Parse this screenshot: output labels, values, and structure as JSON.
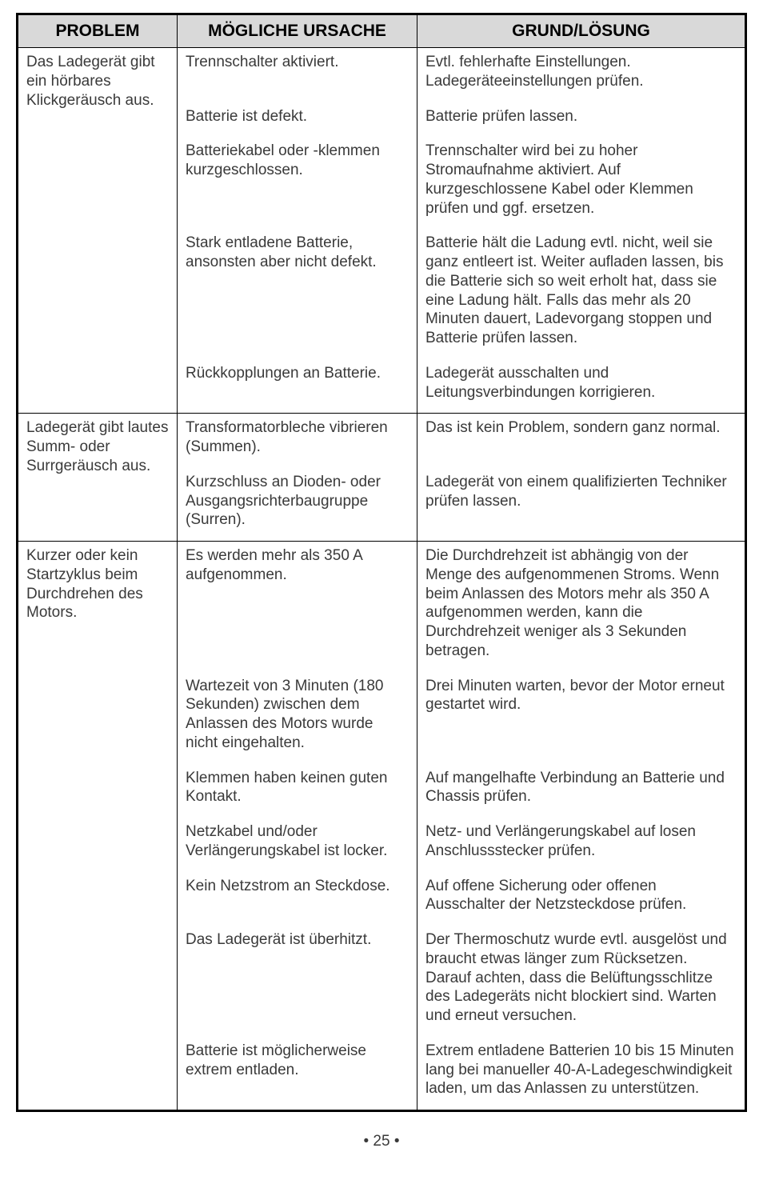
{
  "headers": {
    "problem": "PROBLEM",
    "cause": "MÖGLICHE URSACHE",
    "solution": "GRUND/LÖSUNG"
  },
  "sections": [
    {
      "problem": "Das Ladegerät gibt ein hörbares Klickgeräusch aus.",
      "rows": [
        {
          "cause": "Trennschalter aktiviert.",
          "solution": "Evtl. fehlerhafte Einstellungen. Ladegeräteeinstellungen prüfen."
        },
        {
          "cause": "Batterie ist defekt.",
          "solution": "Batterie prüfen lassen."
        },
        {
          "cause": "Batteriekabel oder -klemmen kurzgeschlossen.",
          "solution": "Trennschalter wird bei zu hoher Stromaufnahme aktiviert. Auf kurzgeschlossene Kabel oder Klemmen prüfen und ggf. ersetzen."
        },
        {
          "cause": "Stark entladene Batterie, ansonsten aber nicht defekt.",
          "solution": "Batterie hält die Ladung evtl. nicht, weil sie ganz entleert ist. Weiter aufladen lassen, bis die Batterie sich so weit erholt hat, dass sie eine Ladung hält. Falls das mehr als 20 Minuten dauert, Ladevorgang stoppen und Batterie prüfen lassen."
        },
        {
          "cause": "Rückkopplungen an Batterie.",
          "solution": "Ladegerät ausschalten und Leitungsverbindungen korrigieren."
        }
      ]
    },
    {
      "problem": "Ladegerät gibt lautes Summ- oder Surrgeräusch aus.",
      "rows": [
        {
          "cause": "Transformatorbleche vibrieren (Summen).",
          "solution": "Das ist kein Problem, sondern ganz normal."
        },
        {
          "cause": "Kurzschluss an Dioden- oder Ausgangsrichterbaugruppe (Surren).",
          "solution": "Ladegerät von einem qualifizierten Techniker prüfen lassen."
        }
      ]
    },
    {
      "problem": "Kurzer oder kein Startzyklus beim Durchdrehen des Motors.",
      "rows": [
        {
          "cause": "Es werden mehr als 350 A aufgenommen.",
          "solution": "Die Durchdrehzeit ist abhängig von der Menge des aufgenommenen Stroms. Wenn beim Anlassen des Motors mehr als 350 A aufgenommen werden, kann die Durchdrehzeit weniger als 3 Sekunden betragen."
        },
        {
          "cause": "Wartezeit von 3 Minuten (180 Sekunden) zwischen dem Anlassen des Motors wurde nicht eingehalten.",
          "solution": "Drei Minuten warten, bevor der Motor erneut gestartet wird."
        },
        {
          "cause": "Klemmen haben keinen guten Kontakt.",
          "solution": "Auf mangelhafte Verbindung an Batterie und Chassis prüfen."
        },
        {
          "cause": "Netzkabel und/oder Verlängerungskabel ist locker.",
          "solution": "Netz- und Verlängerungskabel auf losen Anschlussstecker prüfen."
        },
        {
          "cause": "Kein Netzstrom an Steckdose.",
          "solution": "Auf offene Sicherung oder offenen Ausschalter der Netzsteckdose prüfen."
        },
        {
          "cause": "Das Ladegerät ist überhitzt.",
          "solution": "Der Thermoschutz wurde evtl. ausgelöst und braucht etwas länger zum Rücksetzen. Darauf achten, dass die Belüftungsschlitze des Ladegeräts nicht blockiert sind. Warten und erneut versuchen."
        },
        {
          "cause": "Batterie ist möglicherweise extrem entladen.",
          "solution": "Extrem entladene Batterien 10 bis 15 Minuten lang bei manueller 40-A-Ladegeschwindigkeit laden, um das Anlassen zu unterstützen."
        }
      ]
    }
  ],
  "pageNumber": "• 25 •"
}
